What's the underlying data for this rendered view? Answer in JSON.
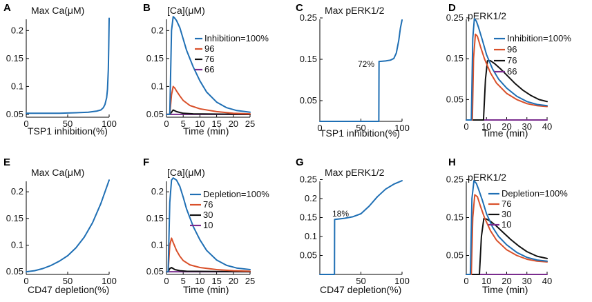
{
  "colors": {
    "blue": "#1f6fb4",
    "orange": "#d9502a",
    "black": "#111111",
    "purple": "#7a2c8e"
  },
  "chart_data": [
    {
      "id": "A",
      "type": "line",
      "panel_label": "A",
      "title": "Max Ca(μM)",
      "xlabel": "TSP1 inhibition(%)",
      "xlim": [
        0,
        100
      ],
      "ylim": [
        0.045,
        0.23
      ],
      "xticks": [
        0,
        50,
        100
      ],
      "yticks": [
        0.05,
        0.1,
        0.15,
        0.2
      ],
      "ytick_labels": [
        "0.05",
        "0.1",
        "0.15",
        "0.2"
      ],
      "series": [
        {
          "name": "",
          "color": "#1f6fb4",
          "x": [
            0,
            20,
            40,
            60,
            75,
            85,
            90,
            93,
            95,
            97,
            98,
            99,
            99.5,
            100
          ],
          "y": [
            0.052,
            0.052,
            0.052,
            0.053,
            0.054,
            0.056,
            0.058,
            0.062,
            0.068,
            0.08,
            0.095,
            0.13,
            0.17,
            0.222
          ]
        }
      ]
    },
    {
      "id": "B",
      "type": "line",
      "panel_label": "B",
      "title": "[Ca](μM)",
      "xlabel": "Time (min)",
      "xlim": [
        0,
        25
      ],
      "ylim": [
        0.045,
        0.23
      ],
      "xticks": [
        0,
        5,
        10,
        15,
        20,
        25
      ],
      "yticks": [
        0.05,
        0.1,
        0.15,
        0.2
      ],
      "ytick_labels": [
        "0.05",
        "0.1",
        "0.15",
        "0.2"
      ],
      "legend": {
        "position": "top-right"
      },
      "series": [
        {
          "name": "Inhibition=100%",
          "color": "#1f6fb4",
          "x": [
            0,
            1,
            1.5,
            2,
            2.5,
            3,
            4,
            5,
            6,
            8,
            10,
            12,
            15,
            18,
            21,
            25
          ],
          "y": [
            0.05,
            0.05,
            0.2,
            0.225,
            0.222,
            0.218,
            0.205,
            0.185,
            0.165,
            0.135,
            0.11,
            0.09,
            0.072,
            0.062,
            0.057,
            0.054
          ]
        },
        {
          "name": "96",
          "color": "#d9502a",
          "x": [
            0,
            1,
            1.5,
            2,
            2.5,
            3,
            4,
            5,
            7,
            10,
            15,
            20,
            25
          ],
          "y": [
            0.05,
            0.05,
            0.085,
            0.1,
            0.097,
            0.092,
            0.083,
            0.075,
            0.066,
            0.06,
            0.055,
            0.052,
            0.051
          ]
        },
        {
          "name": "76",
          "color": "#111111",
          "x": [
            0,
            1,
            1.5,
            2,
            3,
            5,
            8,
            25
          ],
          "y": [
            0.05,
            0.05,
            0.054,
            0.058,
            0.055,
            0.052,
            0.051,
            0.05
          ]
        },
        {
          "name": "66",
          "color": "#7a2c8e",
          "x": [
            0,
            25
          ],
          "y": [
            0.05,
            0.05
          ]
        }
      ]
    },
    {
      "id": "C",
      "type": "line",
      "panel_label": "C",
      "title": "Max pERK1/2",
      "xlabel": "TSP1 inhibition(%)",
      "xlim": [
        0,
        100
      ],
      "ylim": [
        0,
        0.26
      ],
      "xticks": [
        0,
        50,
        100
      ],
      "yticks": [
        0.05,
        0.15,
        0.25
      ],
      "ytick_labels": [
        "0.05",
        "0.15",
        "0.25"
      ],
      "annotation": "72%",
      "series": [
        {
          "name": "",
          "color": "#1f6fb4",
          "x": [
            0,
            71.8,
            72,
            74,
            80,
            86,
            90,
            93,
            96,
            98,
            100
          ],
          "y": [
            0,
            0,
            0.145,
            0.145,
            0.146,
            0.148,
            0.152,
            0.165,
            0.195,
            0.225,
            0.245
          ]
        }
      ]
    },
    {
      "id": "D",
      "type": "line",
      "panel_label": "D",
      "title": "pERK1/2",
      "xlabel": "Time (min)",
      "xlim": [
        0,
        40
      ],
      "ylim": [
        0,
        0.26
      ],
      "xticks": [
        0,
        10,
        20,
        30,
        40
      ],
      "yticks": [
        0.05,
        0.15,
        0.25
      ],
      "ytick_labels": [
        "0.05",
        "0.15",
        "0.25"
      ],
      "legend": {
        "position": "top-right"
      },
      "series": [
        {
          "name": "Inhibition=100%",
          "color": "#1f6fb4",
          "x": [
            0,
            2.5,
            3.2,
            4,
            5,
            6,
            8,
            10,
            13,
            16,
            20,
            25,
            30,
            35,
            40
          ],
          "y": [
            0,
            0,
            0.2,
            0.248,
            0.242,
            0.228,
            0.195,
            0.16,
            0.125,
            0.1,
            0.078,
            0.058,
            0.045,
            0.038,
            0.035
          ]
        },
        {
          "name": "96",
          "color": "#d9502a",
          "x": [
            0,
            3,
            3.6,
            4.5,
            5.5,
            7,
            9,
            12,
            15,
            20,
            25,
            30,
            35,
            40
          ],
          "y": [
            0,
            0,
            0.15,
            0.21,
            0.205,
            0.18,
            0.15,
            0.115,
            0.09,
            0.065,
            0.05,
            0.04,
            0.035,
            0.033
          ]
        },
        {
          "name": "76",
          "color": "#111111",
          "x": [
            0,
            8.5,
            9.5,
            10.5,
            12,
            14,
            17,
            20,
            24,
            28,
            32,
            36,
            40
          ],
          "y": [
            0,
            0,
            0.1,
            0.145,
            0.145,
            0.138,
            0.125,
            0.11,
            0.09,
            0.073,
            0.06,
            0.05,
            0.045
          ]
        },
        {
          "name": "66",
          "color": "#7a2c8e",
          "x": [
            0,
            40
          ],
          "y": [
            0,
            0
          ]
        }
      ]
    },
    {
      "id": "E",
      "type": "line",
      "panel_label": "E",
      "title": "Max Ca(μM)",
      "xlabel": "CD47 depletion(%)",
      "xlim": [
        0,
        100
      ],
      "ylim": [
        0.045,
        0.23
      ],
      "xticks": [
        0,
        50,
        100
      ],
      "yticks": [
        0.05,
        0.1,
        0.15,
        0.2
      ],
      "ytick_labels": [
        "0.05",
        "0.1",
        "0.15",
        "0.2"
      ],
      "series": [
        {
          "name": "",
          "color": "#1f6fb4",
          "x": [
            0,
            10,
            20,
            30,
            40,
            50,
            60,
            70,
            80,
            90,
            100
          ],
          "y": [
            0.05,
            0.052,
            0.056,
            0.062,
            0.07,
            0.08,
            0.095,
            0.115,
            0.142,
            0.178,
            0.222
          ]
        }
      ]
    },
    {
      "id": "F",
      "type": "line",
      "panel_label": "F",
      "title": "[Ca](μM)",
      "xlabel": "Time (min)",
      "xlim": [
        0,
        25
      ],
      "ylim": [
        0.045,
        0.23
      ],
      "xticks": [
        0,
        5,
        10,
        15,
        20,
        25
      ],
      "yticks": [
        0.05,
        0.1,
        0.15,
        0.2
      ],
      "ytick_labels": [
        "0.05",
        "0.1",
        "0.15",
        "0.2"
      ],
      "legend": {
        "position": "top-right"
      },
      "series": [
        {
          "name": "Depletion=100%",
          "color": "#1f6fb4",
          "x": [
            0,
            0.5,
            1,
            1.5,
            2,
            3,
            4,
            5,
            6,
            8,
            10,
            12,
            15,
            18,
            21,
            25
          ],
          "y": [
            0.05,
            0.05,
            0.18,
            0.222,
            0.226,
            0.222,
            0.21,
            0.19,
            0.168,
            0.135,
            0.11,
            0.09,
            0.072,
            0.062,
            0.057,
            0.054
          ]
        },
        {
          "name": "76",
          "color": "#d9502a",
          "x": [
            0,
            0.5,
            1,
            1.5,
            2,
            3,
            4,
            5,
            7,
            10,
            15,
            20,
            25
          ],
          "y": [
            0.05,
            0.05,
            0.1,
            0.113,
            0.105,
            0.09,
            0.079,
            0.071,
            0.063,
            0.058,
            0.054,
            0.052,
            0.051
          ]
        },
        {
          "name": "30",
          "color": "#111111",
          "x": [
            0,
            0.5,
            1,
            1.5,
            2.5,
            4,
            6,
            25
          ],
          "y": [
            0.05,
            0.05,
            0.056,
            0.058,
            0.054,
            0.052,
            0.051,
            0.05
          ]
        },
        {
          "name": "10",
          "color": "#7a2c8e",
          "x": [
            0,
            25
          ],
          "y": [
            0.05,
            0.05
          ]
        }
      ]
    },
    {
      "id": "G",
      "type": "line",
      "panel_label": "G",
      "title": "Max pERK1/2",
      "xlabel": "CD47 depletion(%)",
      "xlim": [
        0,
        100
      ],
      "ylim": [
        0,
        0.26
      ],
      "xticks": [
        50,
        100
      ],
      "yticks": [
        0.05,
        0.1,
        0.15,
        0.2,
        0.25
      ],
      "ytick_labels": [
        "0.05",
        "0.1",
        "0.15",
        "0.2",
        "0.25"
      ],
      "annotation": "18%",
      "series": [
        {
          "name": "",
          "color": "#1f6fb4",
          "x": [
            0,
            17.8,
            18,
            22,
            30,
            40,
            50,
            60,
            70,
            80,
            90,
            100
          ],
          "y": [
            0,
            0,
            0.145,
            0.146,
            0.148,
            0.152,
            0.16,
            0.18,
            0.205,
            0.225,
            0.238,
            0.247
          ]
        }
      ]
    },
    {
      "id": "H",
      "type": "line",
      "panel_label": "H",
      "title": "pERK1/2",
      "xlabel": "Time (min)",
      "xlim": [
        0,
        40
      ],
      "ylim": [
        0,
        0.26
      ],
      "xticks": [
        0,
        10,
        20,
        30,
        40
      ],
      "yticks": [
        0.05,
        0.15,
        0.25
      ],
      "ytick_labels": [
        "0.05",
        "0.15",
        "0.25"
      ],
      "legend": {
        "position": "top-right"
      },
      "series": [
        {
          "name": "Depletion=100%",
          "color": "#1f6fb4",
          "x": [
            0,
            2,
            2.8,
            3.8,
            5,
            6,
            8,
            10,
            13,
            16,
            20,
            25,
            30,
            35,
            40
          ],
          "y": [
            0,
            0,
            0.2,
            0.247,
            0.24,
            0.226,
            0.195,
            0.16,
            0.125,
            0.1,
            0.078,
            0.058,
            0.045,
            0.038,
            0.035
          ]
        },
        {
          "name": "76",
          "color": "#d9502a",
          "x": [
            0,
            2.5,
            3.2,
            4.2,
            5.5,
            7,
            9,
            12,
            15,
            20,
            25,
            30,
            35,
            40
          ],
          "y": [
            0,
            0,
            0.15,
            0.21,
            0.205,
            0.18,
            0.15,
            0.115,
            0.09,
            0.065,
            0.05,
            0.04,
            0.035,
            0.033
          ]
        },
        {
          "name": "30",
          "color": "#111111",
          "x": [
            0,
            6.5,
            7.5,
            8.7,
            10,
            12,
            15,
            18,
            22,
            26,
            30,
            35,
            40
          ],
          "y": [
            0,
            0,
            0.1,
            0.147,
            0.146,
            0.14,
            0.127,
            0.112,
            0.092,
            0.075,
            0.06,
            0.048,
            0.042
          ]
        },
        {
          "name": "10",
          "color": "#7a2c8e",
          "x": [
            0,
            40
          ],
          "y": [
            0,
            0
          ]
        }
      ]
    }
  ]
}
